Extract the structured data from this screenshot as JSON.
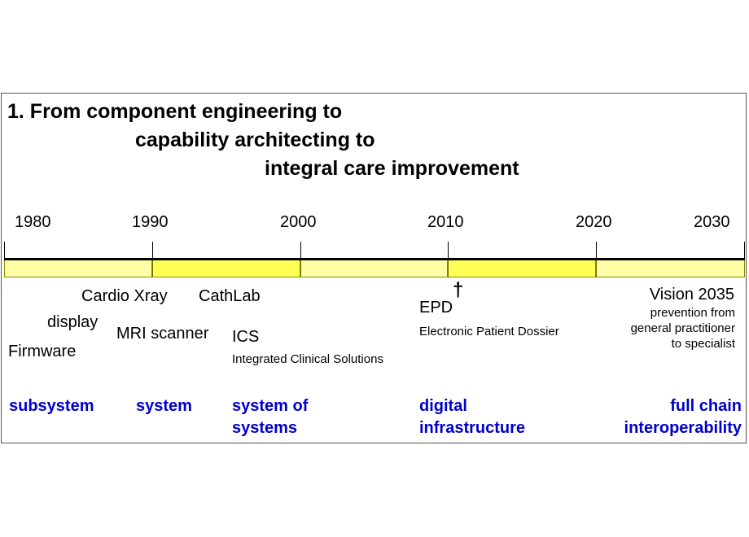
{
  "title": {
    "line1": "1. From component engineering to",
    "line2": "capability architecting to",
    "line3": "integral care improvement"
  },
  "years": [
    "1980",
    "1990",
    "2000",
    "2010",
    "2020",
    "2030"
  ],
  "colors": {
    "band_light": "#ffffa8",
    "band_dark": "#ffff55",
    "stage_text": "#0000cc"
  },
  "items": {
    "firmware": "Firmware",
    "display": "display",
    "cardio_xray": "Cardio Xray",
    "mri_scanner": "MRI scanner",
    "cathlab": "CathLab",
    "ics": "ICS",
    "ics_full": "Integrated Clinical Solutions",
    "epd": "EPD",
    "epd_marker": "†",
    "epd_full": "Electronic Patient Dossier",
    "vision": "Vision 2035",
    "vision_desc_1": "prevention from",
    "vision_desc_2": "general practitioner",
    "vision_desc_3": "to specialist"
  },
  "stages": {
    "subsystem": "subsystem",
    "system": "system",
    "system_of_systems_1": "system of",
    "system_of_systems_2": "systems",
    "digital_1": "digital",
    "digital_2": "infrastructure",
    "full_chain_1": "full chain",
    "full_chain_2": "interoperability"
  }
}
